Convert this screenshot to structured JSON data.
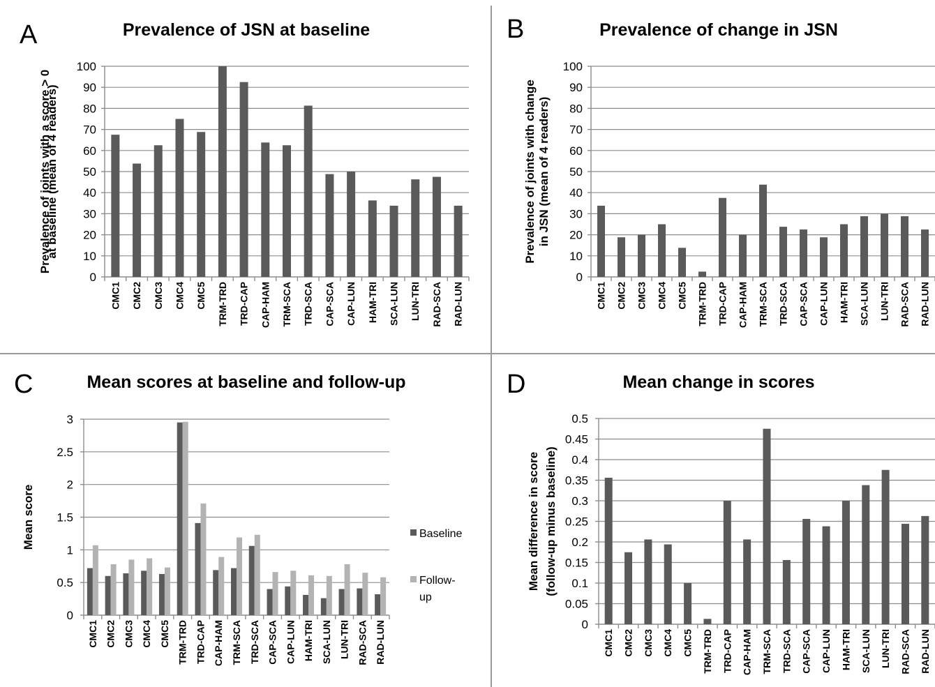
{
  "chart_data": [
    {
      "panel": "A",
      "type": "bar",
      "title": "Prevalence of JSN at baseline",
      "ylabel": [
        "Prevalence of joints with a score > 0",
        "at baseline (mean of 4 readers)"
      ],
      "ylim": [
        0,
        100
      ],
      "yticks": [
        "0",
        "10",
        "20",
        "30",
        "40",
        "50",
        "60",
        "70",
        "80",
        "90",
        "100"
      ],
      "grid": true,
      "bar_color": "#5a5a5a",
      "categories": [
        "CMC1",
        "CMC2",
        "CMC3",
        "CMC4",
        "CMC5",
        "TRM-TRD",
        "TRD-CAP",
        "CAP-HAM",
        "TRM-SCA",
        "TRD-SCA",
        "CAP-SCA",
        "CAP-LUN",
        "HAM-TRI",
        "SCA-LUN",
        "LUN-TRI",
        "RAD-SCA",
        "RAD-LUN"
      ],
      "values": [
        67.5,
        53.8,
        62.5,
        75.0,
        68.8,
        100,
        92.5,
        63.8,
        62.5,
        81.3,
        48.8,
        50.0,
        36.3,
        33.8,
        46.3,
        47.5,
        33.8
      ]
    },
    {
      "panel": "B",
      "type": "bar",
      "title": "Prevalence of change in JSN",
      "ylabel": [
        "Prevalence of joints with change",
        "in JSN (mean of 4 readers)"
      ],
      "ylim": [
        0,
        100
      ],
      "yticks": [
        "0",
        "10",
        "20",
        "30",
        "40",
        "50",
        "60",
        "70",
        "80",
        "90",
        "100"
      ],
      "grid": true,
      "bar_color": "#5a5a5a",
      "categories": [
        "CMC1",
        "CMC2",
        "CMC3",
        "CMC4",
        "CMC5",
        "TRM-TRD",
        "TRD-CAP",
        "CAP-HAM",
        "TRM-SCA",
        "TRD-SCA",
        "CAP-SCA",
        "CAP-LUN",
        "HAM-TRI",
        "SCA-LUN",
        "LUN-TRI",
        "RAD-SCA",
        "RAD-LUN"
      ],
      "values": [
        33.8,
        18.8,
        20.0,
        25.0,
        13.8,
        2.5,
        37.5,
        20.0,
        43.8,
        23.8,
        22.5,
        18.8,
        25.0,
        28.8,
        30.0,
        28.8,
        22.5
      ]
    },
    {
      "panel": "C",
      "type": "bar",
      "title": "Mean scores at baseline and follow-up",
      "ylabel": [
        "Mean score"
      ],
      "ylim": [
        0,
        3
      ],
      "yticks": [
        "0",
        "0.5",
        "1",
        "1.5",
        "2",
        "2.5",
        "3"
      ],
      "grid": true,
      "legend_position": "right",
      "legend": [
        {
          "lines": [
            "Baseline"
          ],
          "color": "#5a5a5a"
        },
        {
          "lines": [
            "Follow-",
            "up"
          ],
          "color": "#b3b3b3"
        }
      ],
      "categories": [
        "CMC1",
        "CMC2",
        "CMC3",
        "CMC4",
        "CMC5",
        "TRM-TRD",
        "TRD-CAP",
        "CAP-HAM",
        "TRM-SCA",
        "TRD-SCA",
        "CAP-SCA",
        "CAP-LUN",
        "HAM-TRI",
        "SCA-LUN",
        "LUN-TRI",
        "RAD-SCA",
        "RAD-LUN"
      ],
      "series": [
        {
          "name": "Baseline",
          "color": "#5a5a5a",
          "values": [
            0.72,
            0.6,
            0.64,
            0.68,
            0.63,
            2.95,
            1.41,
            0.69,
            0.72,
            1.06,
            0.4,
            0.44,
            0.31,
            0.26,
            0.4,
            0.41,
            0.32
          ]
        },
        {
          "name": "Follow-up",
          "color": "#b3b3b3",
          "values": [
            1.07,
            0.78,
            0.85,
            0.87,
            0.73,
            2.96,
            1.71,
            0.89,
            1.19,
            1.23,
            0.66,
            0.68,
            0.61,
            0.6,
            0.78,
            0.65,
            0.58
          ]
        }
      ]
    },
    {
      "panel": "D",
      "type": "bar",
      "title": "Mean change in scores",
      "ylabel": [
        "Mean difference in score",
        "(follow-up minus baseline)"
      ],
      "ylim": [
        0,
        0.5
      ],
      "yticks": [
        "0",
        "0.05",
        "0.1",
        "0.15",
        "0.2",
        "0.25",
        "0.3",
        "0.35",
        "0.4",
        "0.45",
        "0.5"
      ],
      "grid": true,
      "bar_color": "#5a5a5a",
      "categories": [
        "CMC1",
        "CMC2",
        "CMC3",
        "CMC4",
        "CMC5",
        "TRM-TRD",
        "TRD-CAP",
        "CAP-HAM",
        "TRM-SCA",
        "TRD-SCA",
        "CAP-SCA",
        "CAP-LUN",
        "HAM-TRI",
        "SCA-LUN",
        "LUN-TRI",
        "RAD-SCA",
        "RAD-LUN"
      ],
      "values": [
        0.356,
        0.175,
        0.206,
        0.194,
        0.1,
        0.013,
        0.3,
        0.206,
        0.475,
        0.156,
        0.256,
        0.238,
        0.3,
        0.338,
        0.375,
        0.244,
        0.263
      ]
    }
  ]
}
